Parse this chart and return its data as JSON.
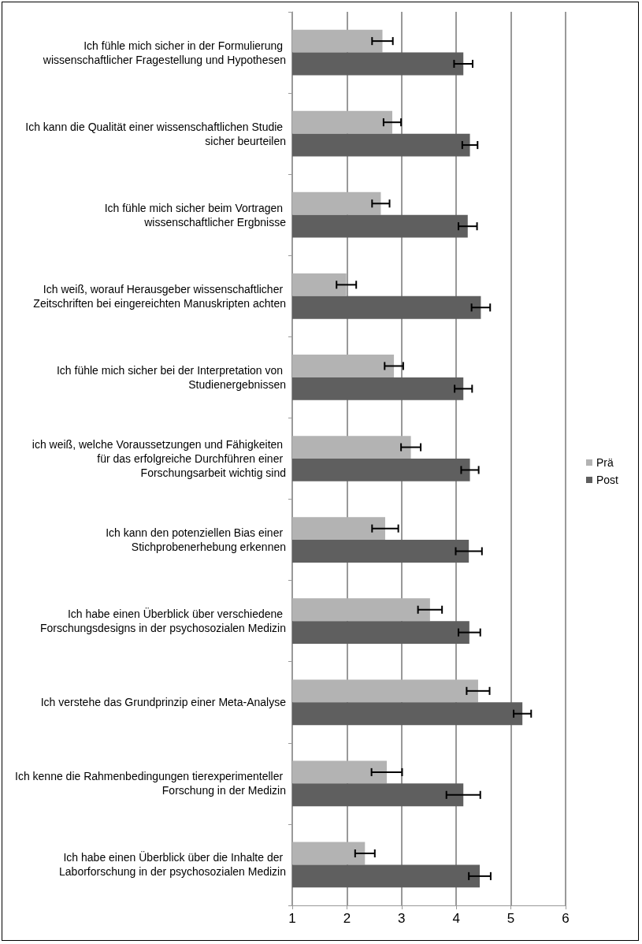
{
  "chart_data": {
    "type": "bar",
    "orientation": "horizontal",
    "categories": [
      "Ich fühle mich sicher in der Formulierung wissenschaftlicher Fragestellung und Hypothesen",
      "Ich kann die Qualität einer wissenschaftlichen Studie sicher beurteilen",
      "Ich fühle mich sicher beim Vortragen wissenschaftlicher Ergbnisse",
      "Ich weiß, worauf Herausgeber wissenschaftlicher Zeitschriften bei eingereichten Manuskripten achten",
      "Ich fühle mich sicher bei der Interpretation von Studienergebnissen",
      "ich weiß, welche Voraussetzungen und Fähigkeiten für das erfolgreiche Durchführen einer Forschungsarbeit wichtig sind",
      "Ich kann den potenziellen Bias einer Stichprobenerhebung erkennen",
      "Ich habe einen Überblick über verschiedene Forschungsdesigns in der psychosozialen Medizin",
      "Ich verstehe das Grundprinzip einer Meta-Analyse",
      "Ich kenne die Rahmenbedingungen tierexperimenteller Forschung in der Medizin",
      "Ich habe einen Überblick über die Inhalte der Laborforschung in der psychosozialen Medizin"
    ],
    "series": [
      {
        "name": "Prä",
        "color": "#b3b3b3",
        "values": [
          2.65,
          2.83,
          2.62,
          1.99,
          2.86,
          3.17,
          2.7,
          3.52,
          4.4,
          2.73,
          2.33
        ],
        "errors": [
          0.19,
          0.16,
          0.16,
          0.18,
          0.17,
          0.18,
          0.24,
          0.22,
          0.21,
          0.28,
          0.18
        ]
      },
      {
        "name": "Post",
        "color": "#5f5f5f",
        "values": [
          4.13,
          4.25,
          4.21,
          4.45,
          4.13,
          4.25,
          4.23,
          4.24,
          5.21,
          4.13,
          4.43
        ],
        "errors": [
          0.17,
          0.14,
          0.17,
          0.17,
          0.16,
          0.16,
          0.24,
          0.2,
          0.16,
          0.31,
          0.2
        ]
      }
    ],
    "xlim": [
      1,
      6
    ],
    "xticks": [
      1,
      2,
      3,
      4,
      5,
      6
    ],
    "grid": "x",
    "legend": "right"
  }
}
